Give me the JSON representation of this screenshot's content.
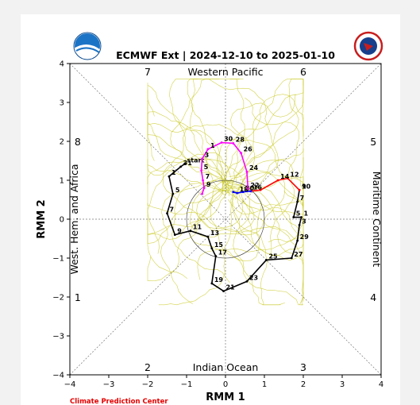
{
  "chart_data": {
    "type": "line",
    "title": "ECMWF Ext | 2024-12-10 to 2025-01-10",
    "xlabel": "RMM 1",
    "ylabel": "RMM 2",
    "xlim": [
      -4,
      4
    ],
    "ylim": [
      -4,
      4
    ],
    "xticks": [
      "−4",
      "−3",
      "−2",
      "−1",
      "0",
      "1",
      "2",
      "3",
      "4"
    ],
    "yticks": [
      "−4",
      "−3",
      "−2",
      "−1",
      "0",
      "1",
      "2",
      "3",
      "4"
    ],
    "phase_numbers": [
      "1",
      "2",
      "3",
      "4",
      "5",
      "6",
      "7",
      "8"
    ],
    "regions": {
      "top": "Western Pacific",
      "bottom": "Indian Ocean",
      "left": "West. Hem. and Africa",
      "right": "Maritime Continent"
    },
    "credit": "Climate Prediction Center",
    "unit_circle_radius": 1,
    "ensemble_plume": {
      "color": "#c8c820",
      "members": 50,
      "note_range_x": [
        -2.0,
        2.0
      ],
      "note_range_y": [
        -2.2,
        3.6
      ]
    },
    "series": [
      {
        "color": "#000000",
        "points": [
          {
            "x": -1.05,
            "y": 1.42,
            "label": "start"
          },
          {
            "x": -1.15,
            "y": 1.35,
            "label": "31"
          },
          {
            "x": -1.45,
            "y": 1.1,
            "label": "1"
          },
          {
            "x": -1.35,
            "y": 0.65,
            "label": "5"
          },
          {
            "x": -1.5,
            "y": 0.15,
            "label": "7"
          },
          {
            "x": -1.3,
            "y": -0.4,
            "label": "9"
          },
          {
            "x": -0.9,
            "y": -0.3,
            "label": "11"
          },
          {
            "x": -0.45,
            "y": -0.45,
            "label": "13"
          },
          {
            "x": -0.35,
            "y": -0.75,
            "label": "15"
          },
          {
            "x": -0.25,
            "y": -0.95,
            "label": "17"
          },
          {
            "x": -0.35,
            "y": -1.65,
            "label": "19"
          },
          {
            "x": -0.05,
            "y": -1.85,
            "label": "21"
          },
          {
            "x": 0.55,
            "y": -1.6,
            "label": "23"
          },
          {
            "x": 1.05,
            "y": -1.05,
            "label": "25"
          },
          {
            "x": 1.7,
            "y": -1.0,
            "label": "27"
          },
          {
            "x": 1.85,
            "y": -0.55,
            "label": "29"
          },
          {
            "x": 1.9,
            "y": -0.15,
            "label": "3"
          },
          {
            "x": 1.95,
            "y": 0.05,
            "label": "1"
          },
          {
            "x": 1.75,
            "y": 0.05,
            "label": "5"
          },
          {
            "x": 1.85,
            "y": 0.45,
            "label": "7"
          },
          {
            "x": 1.9,
            "y": 0.75,
            "label": "9"
          }
        ]
      },
      {
        "color": "#ff0000",
        "points": [
          {
            "x": 1.9,
            "y": 0.75,
            "label": "10"
          },
          {
            "x": 1.6,
            "y": 1.05,
            "label": "12"
          },
          {
            "x": 1.35,
            "y": 1.0,
            "label": "14"
          },
          {
            "x": 0.9,
            "y": 0.75
          },
          {
            "x": 0.65,
            "y": 0.72,
            "label": "16"
          }
        ]
      },
      {
        "color": "#0000ff",
        "points": [
          {
            "x": 0.65,
            "y": 0.72
          },
          {
            "x": 0.45,
            "y": 0.7,
            "label": "20"
          },
          {
            "x": 0.3,
            "y": 0.67,
            "label": "18"
          },
          {
            "x": 0.2,
            "y": 0.7
          }
        ]
      },
      {
        "color": "#ff00ff",
        "points": [
          {
            "x": 0.58,
            "y": 0.78,
            "label": "22"
          },
          {
            "x": 0.55,
            "y": 1.22,
            "label": "24"
          },
          {
            "x": 0.4,
            "y": 1.7,
            "label": "26"
          },
          {
            "x": 0.2,
            "y": 1.95,
            "label": "28"
          },
          {
            "x": -0.1,
            "y": 1.97,
            "label": "30"
          },
          {
            "x": -0.45,
            "y": 1.8,
            "label": "1"
          },
          {
            "x": -0.6,
            "y": 1.55,
            "label": "3"
          },
          {
            "x": -0.62,
            "y": 1.25,
            "label": "5"
          },
          {
            "x": -0.58,
            "y": 1.0,
            "label": "7"
          },
          {
            "x": -0.55,
            "y": 0.8,
            "label": "9"
          },
          {
            "x": -0.6,
            "y": 0.65
          }
        ]
      }
    ]
  }
}
